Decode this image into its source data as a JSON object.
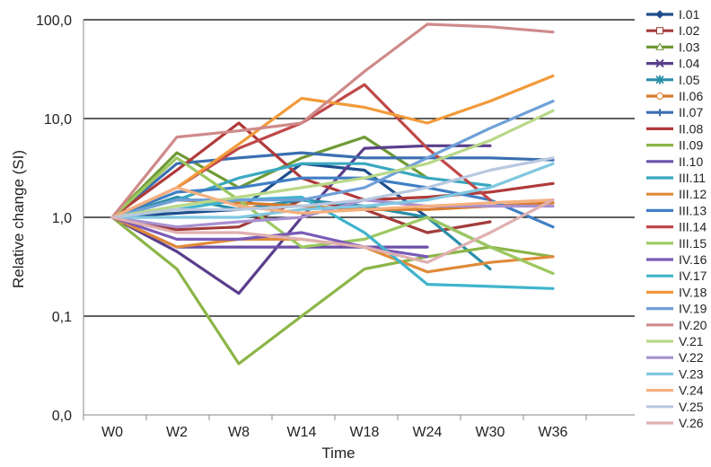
{
  "chart_data": {
    "type": "line",
    "xlabel": "Time",
    "ylabel": "Relative change (SI)",
    "y_scale": "log",
    "ylim": [
      0.01,
      100
    ],
    "y_ticks": [
      {
        "value": 100,
        "label": "100,0"
      },
      {
        "value": 10,
        "label": "10,0"
      },
      {
        "value": 1,
        "label": "1,0"
      },
      {
        "value": 0.1,
        "label": "0,1"
      },
      {
        "value": 0.01,
        "label": "0,0"
      }
    ],
    "categories": [
      "W0",
      "W2",
      "W8",
      "W14",
      "W18",
      "W24",
      "W30",
      "W36"
    ],
    "grid": "horizontal major gridlines",
    "legend_position": "right",
    "series": [
      {
        "name": "I.01",
        "color": "#1f4e8c",
        "marker": "diamond",
        "values": [
          1,
          1.1,
          1.2,
          3.5,
          3.0,
          1.0,
          0.5,
          null
        ]
      },
      {
        "name": "I.02",
        "color": "#a33b3b",
        "marker": "square",
        "values": [
          1,
          0.75,
          0.8,
          1.5,
          1.2,
          0.7,
          0.9,
          null
        ]
      },
      {
        "name": "I.03",
        "color": "#6f9a35",
        "marker": "triangle",
        "values": [
          1,
          4.5,
          2.0,
          4.0,
          6.5,
          2.5,
          null,
          null
        ]
      },
      {
        "name": "I.04",
        "color": "#5a3e8c",
        "marker": "x",
        "values": [
          1,
          0.45,
          0.17,
          1.0,
          5.0,
          5.3,
          5.3,
          null
        ]
      },
      {
        "name": "I.05",
        "color": "#2b8fa8",
        "marker": "star",
        "values": [
          1,
          1.6,
          1.2,
          1.5,
          1.3,
          1.0,
          0.3,
          null
        ]
      },
      {
        "name": "II.06",
        "color": "#d97b2b",
        "marker": "circle",
        "values": [
          1,
          1.5,
          1.4,
          1.3,
          1.2,
          1.2,
          1.3,
          1.4
        ]
      },
      {
        "name": "II.07",
        "color": "#3a6fb0",
        "marker": "plus",
        "values": [
          1,
          3.5,
          4.0,
          4.5,
          4.0,
          4.0,
          4.0,
          3.8
        ]
      },
      {
        "name": "II.08",
        "color": "#b03a3a",
        "marker": "none",
        "values": [
          1,
          3.0,
          9.0,
          2.5,
          1.5,
          1.6,
          1.8,
          2.2
        ]
      },
      {
        "name": "II.09",
        "color": "#8cb548",
        "marker": "none",
        "values": [
          1,
          0.3,
          0.033,
          0.1,
          0.3,
          0.4,
          0.5,
          0.4
        ]
      },
      {
        "name": "II.10",
        "color": "#6b4fa8",
        "marker": "none",
        "values": [
          1,
          0.5,
          0.5,
          0.5,
          0.5,
          0.5,
          null,
          null
        ]
      },
      {
        "name": "III.11",
        "color": "#3aa8c0",
        "marker": "none",
        "values": [
          1,
          1.5,
          2.5,
          3.5,
          3.5,
          2.5,
          2.1,
          null
        ]
      },
      {
        "name": "III.12",
        "color": "#e08a3a",
        "marker": "none",
        "values": [
          1,
          0.5,
          0.6,
          0.6,
          0.5,
          0.28,
          0.35,
          0.4
        ]
      },
      {
        "name": "III.13",
        "color": "#3f7fc4",
        "marker": "none",
        "values": [
          1,
          1.8,
          2.0,
          2.5,
          2.5,
          2.0,
          1.5,
          0.8
        ]
      },
      {
        "name": "III.14",
        "color": "#c04848",
        "marker": "none",
        "values": [
          1,
          2.0,
          5.0,
          9.0,
          22.0,
          5.0,
          1.5,
          null
        ]
      },
      {
        "name": "III.15",
        "color": "#9cc860",
        "marker": "none",
        "values": [
          1,
          4.0,
          1.5,
          0.5,
          0.6,
          1.0,
          0.5,
          0.27
        ]
      },
      {
        "name": "IV.16",
        "color": "#7a5ab8",
        "marker": "none",
        "values": [
          1,
          0.6,
          0.6,
          0.7,
          0.5,
          0.4,
          null,
          null
        ]
      },
      {
        "name": "IV.17",
        "color": "#40b4cc",
        "marker": "none",
        "values": [
          1,
          1.2,
          1.5,
          1.6,
          0.7,
          0.21,
          0.2,
          0.19
        ]
      },
      {
        "name": "IV.18",
        "color": "#f29a3a",
        "marker": "none",
        "values": [
          1,
          2.0,
          5.5,
          16.0,
          13.0,
          9.0,
          15.0,
          27.0
        ]
      },
      {
        "name": "IV.19",
        "color": "#6fa0d8",
        "marker": "none",
        "values": [
          1,
          1.5,
          1.5,
          1.5,
          2.0,
          4.0,
          8.0,
          15.0
        ]
      },
      {
        "name": "IV.20",
        "color": "#cf8a8a",
        "marker": "none",
        "values": [
          1,
          6.5,
          7.5,
          9.0,
          30.0,
          90.0,
          85.0,
          75.0
        ]
      },
      {
        "name": "V.21",
        "color": "#b8d888",
        "marker": "none",
        "values": [
          1,
          1.3,
          1.6,
          2.0,
          2.5,
          3.5,
          6.0,
          12.0
        ]
      },
      {
        "name": "V.22",
        "color": "#a890d0",
        "marker": "none",
        "values": [
          1,
          0.8,
          0.9,
          1.0,
          1.5,
          1.3,
          1.3,
          1.3
        ]
      },
      {
        "name": "V.23",
        "color": "#80c8e0",
        "marker": "none",
        "values": [
          1,
          1.0,
          1.0,
          1.2,
          1.3,
          1.5,
          2.0,
          3.5
        ]
      },
      {
        "name": "V.24",
        "color": "#f4b080",
        "marker": "none",
        "values": [
          1,
          2.0,
          1.3,
          1.1,
          1.2,
          1.3,
          1.4,
          1.5
        ]
      },
      {
        "name": "V.25",
        "color": "#b8c8e0",
        "marker": "none",
        "values": [
          1,
          1.2,
          1.2,
          1.3,
          1.5,
          2.0,
          3.0,
          4.0
        ]
      },
      {
        "name": "V.26",
        "color": "#e0b0b0",
        "marker": "none",
        "values": [
          1,
          0.7,
          0.7,
          0.6,
          0.5,
          0.35,
          0.7,
          1.5
        ]
      }
    ]
  }
}
